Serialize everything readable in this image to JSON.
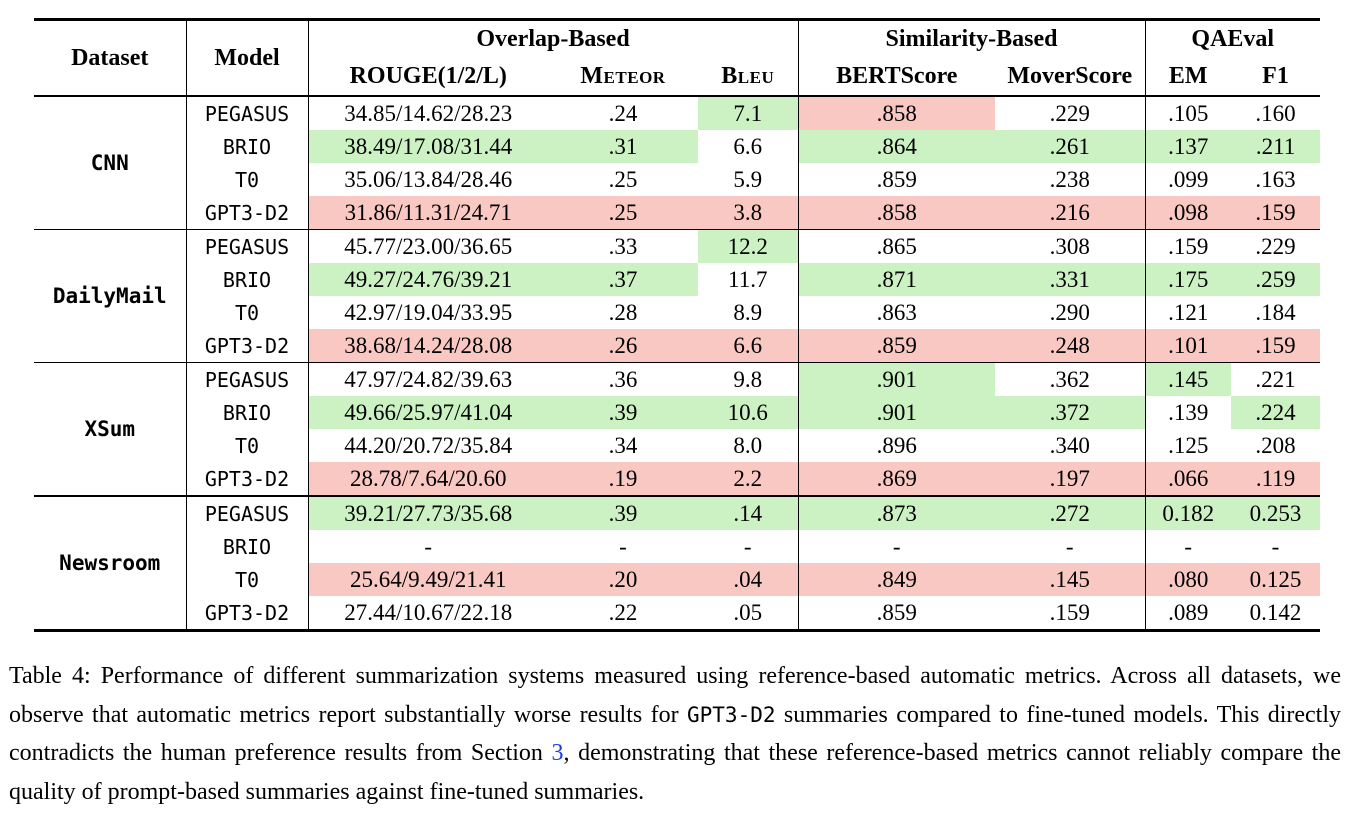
{
  "colors": {
    "green_highlight": "#ccf2c4",
    "red_highlight": "#f9c8c3",
    "link_blue": "#1e3ce8"
  },
  "table": {
    "column_headers": {
      "dataset": "Dataset",
      "model": "Model",
      "groups": [
        {
          "label": "Overlap-Based"
        },
        {
          "label": "Similarity-Based"
        },
        {
          "label": "QAEval"
        }
      ],
      "metrics": [
        {
          "label": "ROUGE(1/2/L)"
        },
        {
          "label": "Meteor"
        },
        {
          "label": "Bleu"
        },
        {
          "label": "BERTScore"
        },
        {
          "label": "MoverScore"
        },
        {
          "label": "EM"
        },
        {
          "label": "F1"
        }
      ]
    },
    "blocks": [
      {
        "dataset": "CNN",
        "rows": [
          {
            "model": "PEGASUS",
            "values": [
              "34.85/14.62/28.23",
              ".24",
              "7.1",
              ".858",
              ".229",
              ".105",
              ".160"
            ],
            "highlights": [
              "",
              "",
              "green",
              "red",
              "",
              "",
              ""
            ]
          },
          {
            "model": "BRIO",
            "values": [
              "38.49/17.08/31.44",
              ".31",
              "6.6",
              ".864",
              ".261",
              ".137",
              ".211"
            ],
            "highlights": [
              "green",
              "green",
              "",
              "green",
              "green",
              "green",
              "green"
            ]
          },
          {
            "model": "T0",
            "values": [
              "35.06/13.84/28.46",
              ".25",
              "5.9",
              ".859",
              ".238",
              ".099",
              ".163"
            ],
            "highlights": [
              "",
              "",
              "",
              "",
              "",
              "",
              ""
            ]
          },
          {
            "model": "GPT3-D2",
            "values": [
              "31.86/11.31/24.71",
              ".25",
              "3.8",
              ".858",
              ".216",
              ".098",
              ".159"
            ],
            "highlights": [
              "red",
              "red",
              "red",
              "red",
              "red",
              "red",
              "red"
            ]
          }
        ]
      },
      {
        "dataset": "DailyMail",
        "rows": [
          {
            "model": "PEGASUS",
            "values": [
              "45.77/23.00/36.65",
              ".33",
              "12.2",
              ".865",
              ".308",
              ".159",
              ".229"
            ],
            "highlights": [
              "",
              "",
              "green",
              "",
              "",
              "",
              ""
            ]
          },
          {
            "model": "BRIO",
            "values": [
              "49.27/24.76/39.21",
              ".37",
              "11.7",
              ".871",
              ".331",
              ".175",
              ".259"
            ],
            "highlights": [
              "green",
              "green",
              "",
              "green",
              "green",
              "green",
              "green"
            ]
          },
          {
            "model": "T0",
            "values": [
              "42.97/19.04/33.95",
              ".28",
              "8.9",
              ".863",
              ".290",
              ".121",
              ".184"
            ],
            "highlights": [
              "",
              "",
              "",
              "",
              "",
              "",
              ""
            ]
          },
          {
            "model": "GPT3-D2",
            "values": [
              "38.68/14.24/28.08",
              ".26",
              "6.6",
              ".859",
              ".248",
              ".101",
              ".159"
            ],
            "highlights": [
              "red",
              "red",
              "red",
              "red",
              "red",
              "red",
              "red"
            ]
          }
        ]
      },
      {
        "dataset": "XSum",
        "rows": [
          {
            "model": "PEGASUS",
            "values": [
              "47.97/24.82/39.63",
              ".36",
              "9.8",
              ".901",
              ".362",
              ".145",
              ".221"
            ],
            "highlights": [
              "",
              "",
              "",
              "green",
              "",
              "green",
              ""
            ]
          },
          {
            "model": "BRIO",
            "values": [
              "49.66/25.97/41.04",
              ".39",
              "10.6",
              ".901",
              ".372",
              ".139",
              ".224"
            ],
            "highlights": [
              "green",
              "green",
              "green",
              "green",
              "green",
              "",
              "green"
            ]
          },
          {
            "model": "T0",
            "values": [
              "44.20/20.72/35.84",
              ".34",
              "8.0",
              ".896",
              ".340",
              ".125",
              ".208"
            ],
            "highlights": [
              "",
              "",
              "",
              "",
              "",
              "",
              ""
            ]
          },
          {
            "model": "GPT3-D2",
            "values": [
              "28.78/7.64/20.60",
              ".19",
              "2.2",
              ".869",
              ".197",
              ".066",
              ".119"
            ],
            "highlights": [
              "red",
              "red",
              "red",
              "red",
              "red",
              "red",
              "red"
            ]
          }
        ]
      },
      {
        "dataset": "Newsroom",
        "rows": [
          {
            "model": "PEGASUS",
            "values": [
              "39.21/27.73/35.68",
              ".39",
              ".14",
              ".873",
              ".272",
              "0.182",
              "0.253"
            ],
            "highlights": [
              "green",
              "green",
              "green",
              "green",
              "green",
              "green",
              "green"
            ]
          },
          {
            "model": "BRIO",
            "values": [
              "-",
              "-",
              "-",
              "-",
              "-",
              "-",
              "-"
            ],
            "highlights": [
              "",
              "",
              "",
              "",
              "",
              "",
              ""
            ]
          },
          {
            "model": "T0",
            "values": [
              "25.64/9.49/21.41",
              ".20",
              ".04",
              ".849",
              ".145",
              ".080",
              "0.125"
            ],
            "highlights": [
              "red",
              "red",
              "red",
              "red",
              "red",
              "red",
              "red"
            ]
          },
          {
            "model": "GPT3-D2",
            "values": [
              "27.44/10.67/22.18",
              ".22",
              ".05",
              ".859",
              ".159",
              ".089",
              "0.142"
            ],
            "highlights": [
              "",
              "",
              "",
              "",
              "",
              "",
              ""
            ]
          }
        ]
      }
    ]
  },
  "caption": {
    "text_before_code": "Table 4: Performance of different summarization systems measured using reference-based automatic metrics. Across all datasets, we observe that automatic metrics report substantially worse results for ",
    "code": "GPT3-D2",
    "text_after_code": " summaries compared to fine-tuned models. This directly contradicts the human preference results from Section ",
    "section_link": "3",
    "text_after_link": ", demonstrating that these reference-based metrics cannot reliably compare the quality of prompt-based summaries against fine-tuned summaries."
  }
}
